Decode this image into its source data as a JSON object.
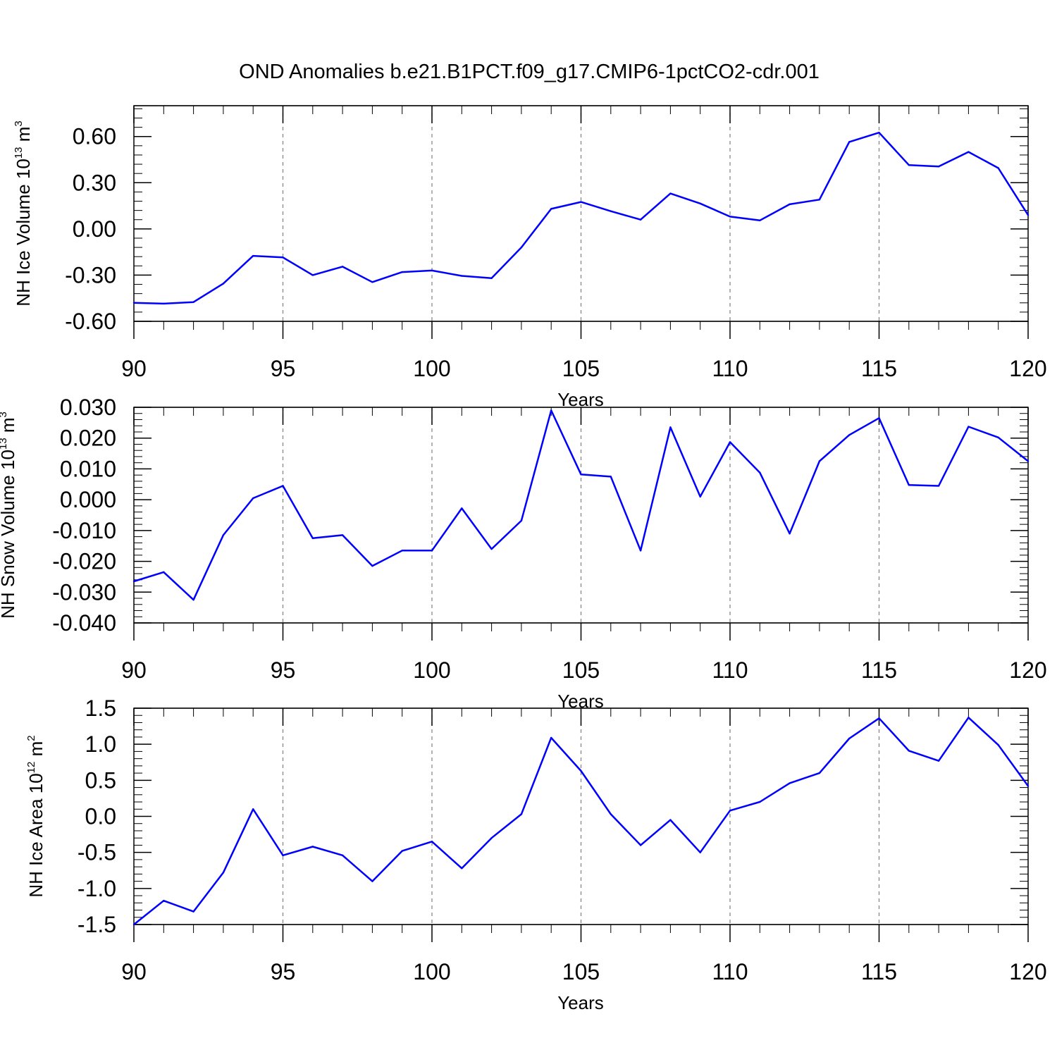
{
  "title": "OND Anomalies b.e21.B1PCT.f09_g17.CMIP6-1pctCO2-cdr.001",
  "colors": {
    "line": "#0000ff",
    "axis": "#000000",
    "grid": "#808080"
  },
  "chart_data": [
    {
      "type": "line",
      "ylabel_prefix": "NH Ice Volume 10",
      "ylabel_exp": "13",
      "ylabel_unit": " m",
      "ylabel_unit_exp": "3",
      "xlabel": "Years",
      "xlim": [
        90,
        120
      ],
      "ylim": [
        -0.6,
        0.8
      ],
      "xticks": [
        90,
        95,
        100,
        105,
        110,
        115,
        120
      ],
      "xtick_labels": [
        "90",
        "95",
        "100",
        "105",
        "110",
        "115",
        "120"
      ],
      "yticks": [
        -0.6,
        -0.3,
        0.0,
        0.3,
        0.6
      ],
      "ytick_labels": [
        "-0.60",
        "-0.30",
        "0.00",
        "0.30",
        "0.60"
      ],
      "x": [
        90,
        91,
        92,
        93,
        94,
        95,
        96,
        97,
        98,
        99,
        100,
        101,
        102,
        103,
        104,
        105,
        106,
        107,
        108,
        109,
        110,
        111,
        112,
        113,
        114,
        115,
        116,
        117,
        118,
        119,
        120
      ],
      "values": [
        -0.48,
        -0.485,
        -0.475,
        -0.355,
        -0.175,
        -0.185,
        -0.3,
        -0.245,
        -0.345,
        -0.28,
        -0.27,
        -0.305,
        -0.32,
        -0.12,
        0.13,
        0.175,
        0.115,
        0.06,
        0.23,
        0.165,
        0.08,
        0.055,
        0.16,
        0.19,
        0.565,
        0.625,
        0.415,
        0.405,
        0.5,
        0.395,
        0.09
      ]
    },
    {
      "type": "line",
      "ylabel_prefix": "NH Snow Volume 10",
      "ylabel_exp": "13",
      "ylabel_unit": " m",
      "ylabel_unit_exp": "3",
      "xlabel": "Years",
      "xlim": [
        90,
        120
      ],
      "ylim": [
        -0.04,
        0.03
      ],
      "xticks": [
        90,
        95,
        100,
        105,
        110,
        115,
        120
      ],
      "xtick_labels": [
        "90",
        "95",
        "100",
        "105",
        "110",
        "115",
        "120"
      ],
      "yticks": [
        -0.04,
        -0.03,
        -0.02,
        -0.01,
        0.0,
        0.01,
        0.02,
        0.03
      ],
      "ytick_labels": [
        "-0.040",
        "-0.030",
        "-0.020",
        "-0.010",
        "0.000",
        "0.010",
        "0.020",
        "0.030"
      ],
      "x": [
        90,
        91,
        92,
        93,
        94,
        95,
        96,
        97,
        98,
        99,
        100,
        101,
        102,
        103,
        104,
        105,
        106,
        107,
        108,
        109,
        110,
        111,
        112,
        113,
        114,
        115,
        116,
        117,
        118,
        119,
        120
      ],
      "values": [
        -0.0265,
        -0.0235,
        -0.0325,
        -0.0115,
        0.0005,
        0.0045,
        -0.0125,
        -0.0115,
        -0.0215,
        -0.0165,
        -0.0165,
        -0.0028,
        -0.016,
        -0.0068,
        0.029,
        0.0082,
        0.0075,
        -0.0165,
        0.0235,
        0.001,
        0.0187,
        0.0088,
        -0.011,
        0.0125,
        0.021,
        0.0265,
        0.0048,
        0.0045,
        0.0237,
        0.0202,
        0.0125
      ]
    },
    {
      "type": "line",
      "ylabel_prefix": "NH Ice Area 10",
      "ylabel_exp": "12",
      "ylabel_unit": " m",
      "ylabel_unit_exp": "2",
      "xlabel": "Years",
      "xlim": [
        90,
        120
      ],
      "ylim": [
        -1.5,
        1.5
      ],
      "xticks": [
        90,
        95,
        100,
        105,
        110,
        115,
        120
      ],
      "xtick_labels": [
        "90",
        "95",
        "100",
        "105",
        "110",
        "115",
        "120"
      ],
      "yticks": [
        -1.5,
        -1.0,
        -0.5,
        0.0,
        0.5,
        1.0,
        1.5
      ],
      "ytick_labels": [
        "-1.5",
        "-1.0",
        "-0.5",
        "0.0",
        "0.5",
        "1.0",
        "1.5"
      ],
      "x": [
        90,
        91,
        92,
        93,
        94,
        95,
        96,
        97,
        98,
        99,
        100,
        101,
        102,
        103,
        104,
        105,
        106,
        107,
        108,
        109,
        110,
        111,
        112,
        113,
        114,
        115,
        116,
        117,
        118,
        119,
        120
      ],
      "values": [
        -1.5,
        -1.17,
        -1.32,
        -0.78,
        0.1,
        -0.54,
        -0.42,
        -0.54,
        -0.9,
        -0.48,
        -0.35,
        -0.72,
        -0.3,
        0.03,
        1.09,
        0.63,
        0.03,
        -0.4,
        -0.05,
        -0.5,
        0.08,
        0.2,
        0.46,
        0.6,
        1.08,
        1.36,
        0.91,
        0.77,
        1.37,
        0.99,
        0.42
      ]
    }
  ]
}
